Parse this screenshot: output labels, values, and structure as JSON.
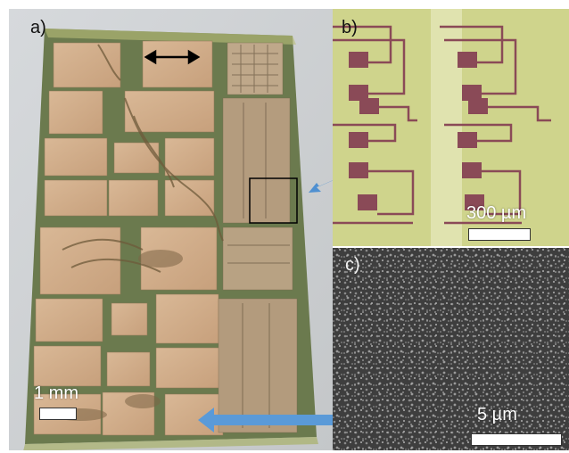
{
  "panels": {
    "a": {
      "label": "a)",
      "scale_label": "1 mm"
    },
    "b": {
      "label": "b)",
      "scale_label": "300 µm"
    },
    "c": {
      "label": "c)",
      "scale_label": "5 µm"
    }
  }
}
